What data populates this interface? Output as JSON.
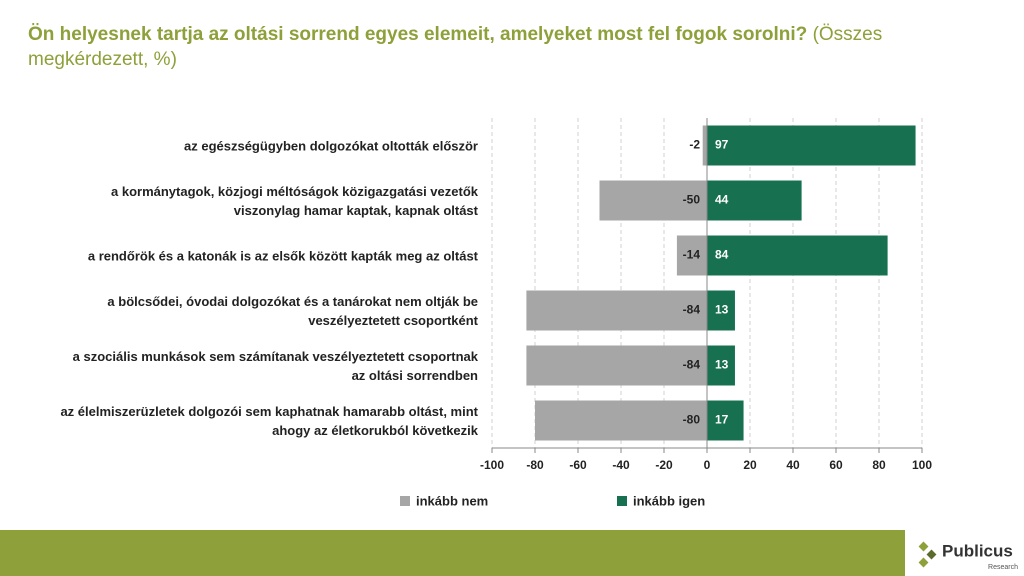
{
  "chart_data": {
    "type": "barh",
    "title": "Ön helyesnek tartja az oltási sorrend egyes elemeit, amelyeket most fel fogok sorolni?",
    "subtitle": "(Összes megkérdezett, %)",
    "categories": [
      "az egészségügyben dolgozókat oltották először",
      "a kormánytagok, közjogi méltóságok közigazgatási vezetők viszonylag hamar kaptak, kapnak oltást",
      "a rendőrök és a katonák is az elsők között kapták meg az oltást",
      "a bölcsődei, óvodai dolgozókat és a tanárokat nem oltják be veszélyeztetett csoportként",
      "a szociális munkások sem számítanak veszélyeztetett csoportnak az oltási sorrendben",
      "az élelmiszerüzletek dolgozói sem kaphatnak hamarabb oltást, mint ahogy az életkorukból következik"
    ],
    "series": [
      {
        "name": "inkább nem",
        "color": "#a6a6a6",
        "values": [
          -2,
          -50,
          -14,
          -84,
          -84,
          -80
        ]
      },
      {
        "name": "inkább igen",
        "color": "#17704f",
        "values": [
          97,
          44,
          84,
          13,
          13,
          17
        ]
      }
    ],
    "xlim": [
      -100,
      100
    ],
    "xticks": [
      -100,
      -80,
      -60,
      -40,
      -20,
      0,
      20,
      40,
      60,
      80,
      100
    ],
    "grid": true
  },
  "logo": {
    "name": "Publicus",
    "sub": "Research"
  }
}
